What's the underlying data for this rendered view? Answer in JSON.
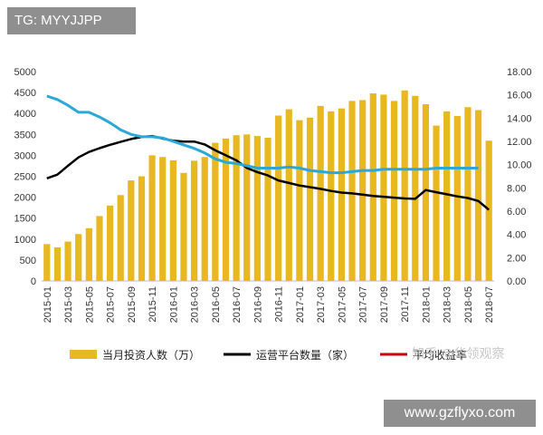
{
  "header": {
    "tag": "TG: MYYJJPP"
  },
  "footer": {
    "site": "www.gzflyxo.com",
    "watermark": "知乎 @华领观察"
  },
  "colors": {
    "bars": "#e8b821",
    "platforms": "#000000",
    "yield_blue": "#2aa8d8",
    "yield_legend": "#cc0000"
  },
  "chart_data": {
    "type": "bar",
    "title": "",
    "categories": [
      "2015-01",
      "2015-02",
      "2015-03",
      "2015-04",
      "2015-05",
      "2015-06",
      "2015-07",
      "2015-08",
      "2015-09",
      "2015-10",
      "2015-11",
      "2015-12",
      "2016-01",
      "2016-02",
      "2016-03",
      "2016-04",
      "2016-05",
      "2016-06",
      "2016-07",
      "2016-08",
      "2016-09",
      "2016-10",
      "2016-11",
      "2016-12",
      "2017-01",
      "2017-02",
      "2017-03",
      "2017-04",
      "2017-05",
      "2017-06",
      "2017-07",
      "2017-08",
      "2017-09",
      "2017-10",
      "2017-11",
      "2017-12",
      "2018-01",
      "2018-02",
      "2018-03",
      "2018-04",
      "2018-05",
      "2018-06",
      "2018-07"
    ],
    "x_tick_labels": [
      "2015-01",
      "2015-03",
      "2015-05",
      "2015-07",
      "2015-09",
      "2015-11",
      "2016-01",
      "2016-03",
      "2016-05",
      "2016-07",
      "2016-09",
      "2016-11",
      "2017-01",
      "2017-03",
      "2017-05",
      "2017-07",
      "2017-09",
      "2017-11",
      "2018-01",
      "2018-03",
      "2018-05",
      "2018-07"
    ],
    "left_axis": {
      "ylim": [
        0,
        5000
      ],
      "ticks": [
        "0",
        "500",
        "1000",
        "1500",
        "2000",
        "2500",
        "3000",
        "3500",
        "4000",
        "4500",
        "5000"
      ]
    },
    "right_axis": {
      "ylim": [
        0,
        18
      ],
      "ticks": [
        "0.00",
        "2.00",
        "4.00",
        "6.00",
        "8.00",
        "10.00",
        "12.00",
        "14.00",
        "16.00",
        "18.00"
      ]
    },
    "series": [
      {
        "name": "当月投资人数（万）",
        "type": "bar",
        "axis": "left",
        "values": [
          880,
          800,
          940,
          1120,
          1260,
          1550,
          1800,
          2050,
          2400,
          2500,
          3000,
          2960,
          2880,
          2580,
          2870,
          2960,
          3300,
          3400,
          3480,
          3500,
          3460,
          3420,
          3950,
          4100,
          3840,
          3900,
          4180,
          4050,
          4120,
          4300,
          4320,
          4480,
          4450,
          4300,
          4550,
          4420,
          4220,
          3710,
          4050,
          3940,
          4150,
          4080,
          3350
        ]
      },
      {
        "name": "运营平台数量（家）",
        "type": "line",
        "axis": "left",
        "values": [
          2450,
          2540,
          2750,
          2950,
          3080,
          3170,
          3250,
          3320,
          3390,
          3440,
          3460,
          3400,
          3350,
          3330,
          3330,
          3260,
          3120,
          3000,
          2880,
          2700,
          2600,
          2520,
          2400,
          2340,
          2280,
          2240,
          2200,
          2150,
          2110,
          2090,
          2060,
          2030,
          2010,
          1990,
          1970,
          1960,
          2170,
          2120,
          2070,
          2020,
          1980,
          1910,
          1700
        ]
      },
      {
        "name": "平均收益率",
        "type": "line",
        "axis": "right",
        "legend_color": "#cc0000",
        "line_color": "#2aa8d8",
        "values": [
          15.9,
          15.6,
          15.1,
          14.5,
          14.5,
          14.1,
          13.6,
          13.0,
          12.6,
          12.4,
          12.4,
          12.3,
          12.0,
          11.7,
          11.4,
          11.0,
          10.5,
          10.2,
          10.1,
          9.9,
          9.7,
          9.7,
          9.7,
          9.8,
          9.7,
          9.5,
          9.4,
          9.3,
          9.3,
          9.4,
          9.5,
          9.5,
          9.6,
          9.6,
          9.6,
          9.6,
          9.6,
          9.7,
          9.7,
          9.7,
          9.7,
          9.7,
          null
        ]
      }
    ],
    "legend_position": "bottom",
    "grid": false
  }
}
